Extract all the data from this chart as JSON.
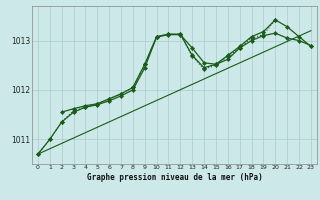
{
  "title": "Graphe pression niveau de la mer (hPa)",
  "bg_color": "#cce8e8",
  "grid_color": "#aacccc",
  "line_color": "#1a5c1a",
  "xlim": [
    -0.5,
    23.5
  ],
  "ylim": [
    1010.5,
    1013.7
  ],
  "yticks": [
    1011,
    1012,
    1013
  ],
  "xticks": [
    0,
    1,
    2,
    3,
    4,
    5,
    6,
    7,
    8,
    9,
    10,
    11,
    12,
    13,
    14,
    15,
    16,
    17,
    18,
    19,
    20,
    21,
    22,
    23
  ],
  "lines": [
    {
      "x": [
        0,
        23
      ],
      "y": [
        1010.7,
        1013.2
      ],
      "marker": null,
      "linestyle": "-",
      "linewidth": 0.8
    },
    {
      "x": [
        0,
        1,
        2,
        3,
        4,
        5,
        6,
        7,
        8,
        9,
        10,
        11,
        12,
        13,
        14,
        15,
        16,
        17,
        18,
        19,
        20,
        21,
        22,
        23
      ],
      "y": [
        1010.7,
        1011.0,
        1011.35,
        1011.55,
        1011.65,
        1011.7,
        1011.78,
        1011.88,
        1012.0,
        1012.45,
        1013.07,
        1013.12,
        1013.12,
        1012.85,
        1012.55,
        1012.52,
        1012.62,
        1012.85,
        1013.0,
        1013.1,
        1013.15,
        1013.05,
        1013.0,
        1012.9
      ],
      "marker": "D",
      "linestyle": "-",
      "linewidth": 0.9
    },
    {
      "x": [
        2,
        3,
        4,
        5,
        6,
        7,
        8,
        9,
        10,
        11,
        12,
        13,
        14,
        15,
        16,
        17,
        18,
        19,
        20,
        21,
        22,
        23
      ],
      "y": [
        1011.55,
        1011.62,
        1011.68,
        1011.72,
        1011.82,
        1011.92,
        1012.05,
        1012.52,
        1013.08,
        1013.13,
        1013.13,
        1012.7,
        1012.45,
        1012.52,
        1012.7,
        1012.88,
        1013.08,
        1013.18,
        1013.42,
        1013.28,
        1013.08,
        1012.88
      ],
      "marker": "D",
      "linestyle": "-",
      "linewidth": 0.9
    },
    {
      "x": [
        0,
        1,
        2,
        3,
        4,
        5,
        6,
        7,
        8,
        9,
        10,
        11,
        12,
        13,
        14,
        15,
        16,
        17,
        18,
        19,
        20
      ],
      "y": [
        1010.7,
        1011.0,
        1011.35,
        1011.58,
        1011.65,
        1011.72,
        1011.82,
        1011.92,
        1012.05,
        1012.52,
        1013.08,
        1013.13,
        1013.13,
        1012.68,
        1012.42,
        1012.5,
        1012.68,
        1012.85,
        1013.05,
        1013.12,
        1013.42
      ],
      "marker": "D",
      "linestyle": ":",
      "linewidth": 0.8
    }
  ]
}
